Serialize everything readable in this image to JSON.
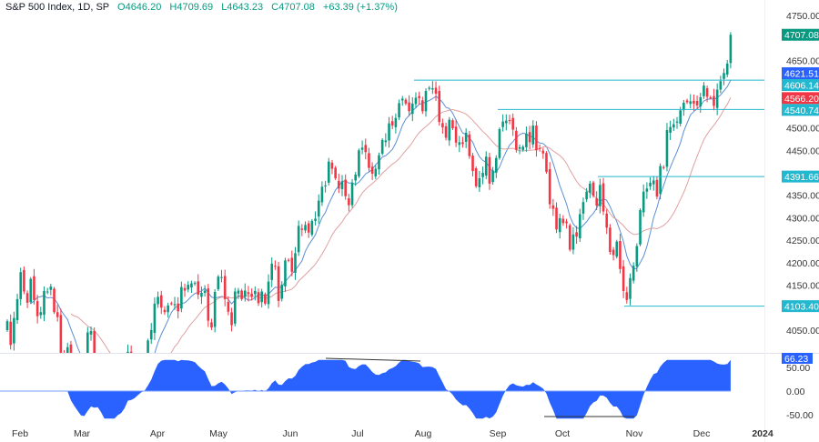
{
  "header": {
    "symbol": "S&P 500 Index, 1D, SP",
    "open": "O4646.20",
    "high": "H4709.69",
    "low": "L4643.23",
    "close": "C4707.08",
    "change": "+63.39 (+1.37%)"
  },
  "colors": {
    "up": "#089981",
    "down": "#f23645",
    "ma_fast": "#5b8fd6",
    "ma_slow": "#e0a0a0",
    "level": "#22b8cf",
    "osc": "#2962ff",
    "last": "#089981",
    "ma_label": "#2962ff",
    "red_label": "#f23645"
  },
  "chart_data": [
    {
      "type": "candlestick",
      "title": "S&P 500 Index, 1D, SP",
      "y_ticks": [
        4750,
        4700,
        4650,
        4600,
        4550,
        4500,
        4450,
        4400,
        4350,
        4300,
        4250,
        4200,
        4150,
        4100,
        4050
      ],
      "y_tick_labels": [
        "4750.00",
        "",
        "4650.00",
        "",
        "",
        "4500.00",
        "4450.00",
        "",
        "4350.00",
        "4300.00",
        "4250.00",
        "4200.00",
        "4150.00",
        "",
        "4050.00"
      ],
      "x_tick_labels": [
        "Feb",
        "Mar",
        "Apr",
        "May",
        "Jun",
        "Jul",
        "Aug",
        "Sep",
        "Oct",
        "Nov",
        "Dec",
        "2024"
      ],
      "ylim": [
        3999,
        4780
      ],
      "close": [
        4070,
        4017,
        4077,
        4119,
        4179,
        4136,
        4111,
        4164,
        4117,
        4081,
        4090,
        4137,
        4136,
        4147,
        4090,
        4079,
        3997,
        3991,
        4012,
        3970,
        3982,
        3970,
        3951,
        3981,
        4045,
        4048,
        3986,
        3992,
        3918,
        3861,
        3855,
        3919,
        3892,
        3960,
        3916,
        3951,
        4002,
        3936,
        3948,
        3970,
        3977,
        3971,
        4027,
        4050,
        4109,
        4124,
        4100,
        4090,
        4105,
        4109,
        4108,
        4092,
        4146,
        4138,
        4151,
        4154,
        4155,
        4129,
        4133,
        4138,
        4071,
        4056,
        4135,
        4169,
        4168,
        4119,
        4091,
        4061,
        4136,
        4138,
        4119,
        4138,
        4130,
        4124,
        4137,
        4110,
        4136,
        4109,
        4158,
        4198,
        4192,
        4115,
        4151,
        4205,
        4205,
        4180,
        4221,
        4282,
        4273,
        4284,
        4267,
        4293,
        4298,
        4338,
        4369,
        4372,
        4425,
        4409,
        4388,
        4365,
        4381,
        4348,
        4328,
        4378,
        4396,
        4450,
        4456,
        4446,
        4411,
        4398,
        4409,
        4439,
        4473,
        4472,
        4510,
        4505,
        4522,
        4555,
        4565,
        4554,
        4537,
        4554,
        4567,
        4566,
        4537,
        4582,
        4589,
        4588,
        4576,
        4513,
        4501,
        4478,
        4518,
        4499,
        4467,
        4468,
        4464,
        4489,
        4437,
        4404,
        4370,
        4388,
        4400,
        4436,
        4376,
        4405,
        4433,
        4497,
        4514,
        4516,
        4516,
        4496,
        4451,
        4457,
        4458,
        4487,
        4468,
        4505,
        4450,
        4453,
        4443,
        4402,
        4330,
        4320,
        4274,
        4299,
        4288,
        4288,
        4229,
        4263,
        4258,
        4308,
        4335,
        4358,
        4376,
        4349,
        4327,
        4373,
        4314,
        4278,
        4224,
        4217,
        4247,
        4186,
        4137,
        4117,
        4166,
        4193,
        4237,
        4317,
        4358,
        4365,
        4378,
        4383,
        4347,
        4415,
        4411,
        4495,
        4502,
        4508,
        4514,
        4539,
        4556,
        4557,
        4559,
        4554,
        4550,
        4568,
        4594,
        4569,
        4567,
        4549,
        4585,
        4604,
        4622,
        4643,
        4707.08
      ],
      "moving_averages": [
        "fast (blue)",
        "slow (pink)"
      ],
      "horizontal_levels": [
        4606.14,
        4540.74,
        4391.66,
        4103.4
      ],
      "price_labels": [
        {
          "value": 4707.08,
          "text": "4707.08",
          "role": "last"
        },
        {
          "value": 4621.51,
          "text": "4621.51",
          "role": "ma"
        },
        {
          "value": 4606.14,
          "text": "4606.14",
          "role": "level"
        },
        {
          "value": 4566.2,
          "text": "4566.20",
          "role": "red"
        },
        {
          "value": 4540.74,
          "text": "4540.74",
          "role": "level"
        },
        {
          "value": 4391.66,
          "text": "4391.66",
          "role": "level"
        },
        {
          "value": 4103.4,
          "text": "4103.40",
          "role": "level"
        }
      ]
    },
    {
      "type": "area",
      "panel": "oscillator",
      "y_ticks": [
        50,
        0,
        -50
      ],
      "y_tick_labels": [
        "50.00",
        "0.00",
        "-50.00"
      ],
      "ylim": [
        -58,
        62
      ],
      "last_value": 66.23,
      "last_label": "66.23"
    }
  ]
}
